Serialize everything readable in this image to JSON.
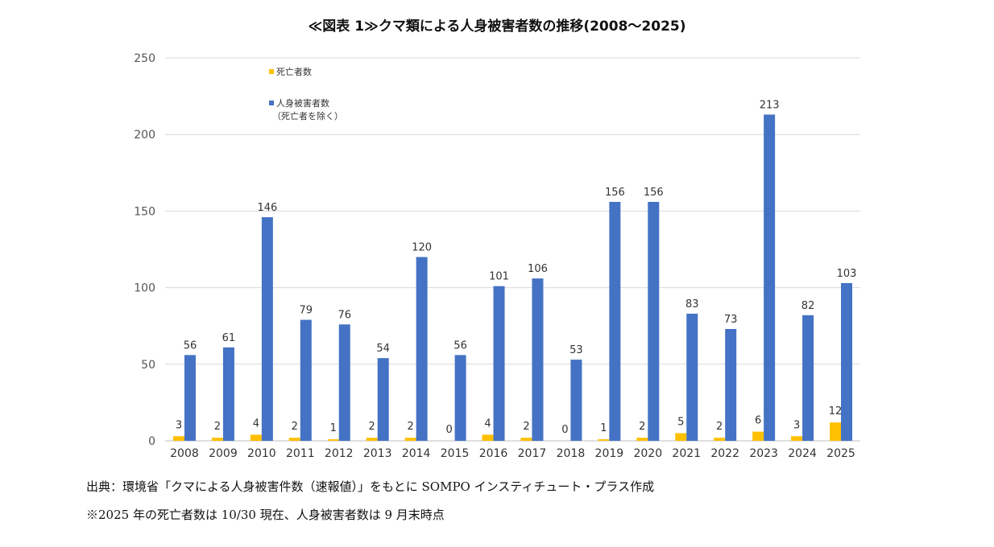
{
  "chart_data": {
    "type": "bar",
    "title": "≪図表 1≫クマ類による人身被害者数の推移(2008～2025)",
    "xlabel": "",
    "ylabel": "",
    "ylim": [
      0,
      250
    ],
    "yticks": [
      0,
      50,
      100,
      150,
      200,
      250
    ],
    "grid": true,
    "legend_position": "top-left",
    "categories": [
      "2008",
      "2009",
      "2010",
      "2011",
      "2012",
      "2013",
      "2014",
      "2015",
      "2016",
      "2017",
      "2018",
      "2019",
      "2020",
      "2021",
      "2022",
      "2023",
      "2024",
      "2025"
    ],
    "series": [
      {
        "name": "死亡者数",
        "color": "#FFC000",
        "values": [
          3,
          2,
          4,
          2,
          1,
          2,
          2,
          0,
          4,
          2,
          0,
          1,
          2,
          5,
          2,
          6,
          3,
          12
        ]
      },
      {
        "name": "人身被害者数(死亡者を除く)",
        "legend_lines": [
          "人身被害者数",
          "（死亡者を除く）"
        ],
        "color": "#4472C4",
        "values": [
          56,
          61,
          146,
          79,
          76,
          54,
          120,
          56,
          101,
          106,
          53,
          156,
          156,
          83,
          73,
          213,
          82,
          103
        ]
      }
    ]
  },
  "notes": {
    "source": "出典：環境省「クマによる人身被害件数（速報値）」をもとに SOMPO インスティチュート・プラス作成",
    "footnote": "※2025 年の死亡者数は 10/30 現在、人身被害者数は 9 月末時点"
  },
  "colors": {
    "gridline": "#d9d9d9",
    "axis": "#bfbfbf"
  }
}
